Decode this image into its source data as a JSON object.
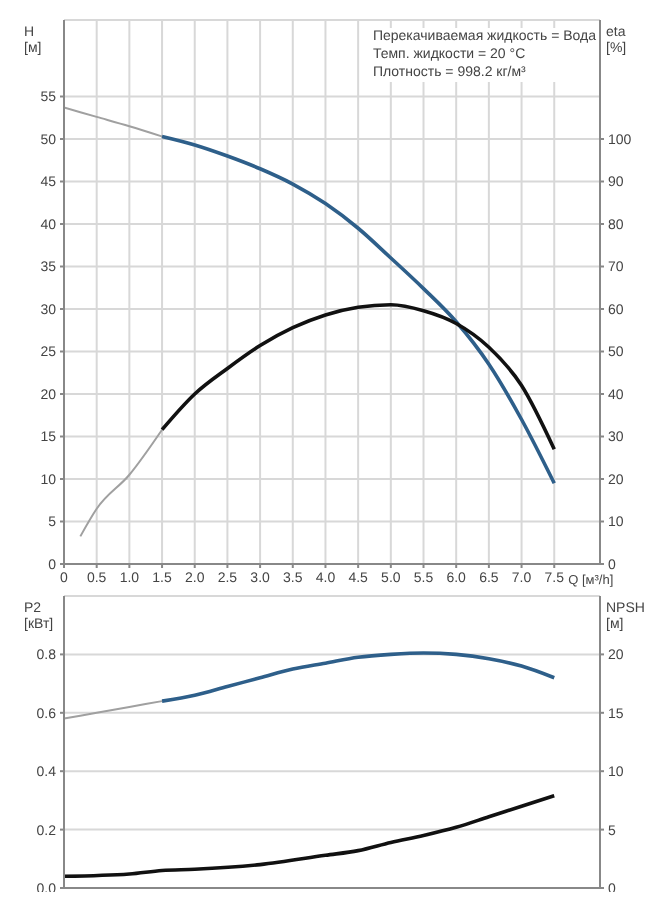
{
  "chart_data": [
    {
      "type": "line",
      "xlabel": "Q [м³/h]",
      "ylabel": "H [м]",
      "y2label": "eta [%]",
      "xlim": [
        0,
        8.2
      ],
      "xticks": [
        {
          "value": 0,
          "label": "0"
        },
        0.5,
        {
          "value": 1,
          "label": "1.0"
        },
        1.5,
        {
          "value": 2,
          "label": "2.0"
        },
        2.5,
        {
          "value": 3,
          "label": "3.0"
        },
        3.5,
        {
          "value": 4,
          "label": "4.0"
        },
        4.5,
        {
          "value": 5,
          "label": "5.0"
        },
        5.5,
        {
          "value": 6,
          "label": "6.0"
        },
        6.5,
        {
          "value": 7,
          "label": "7.0"
        },
        7.5
      ],
      "ylim": [
        0,
        64
      ],
      "yticks": [
        0,
        5,
        10,
        15,
        20,
        25,
        30,
        35,
        40,
        45,
        50,
        55
      ],
      "y2lim": [
        0,
        128
      ],
      "y2ticks": [
        0,
        10,
        20,
        30,
        40,
        50,
        60,
        70,
        80,
        90,
        100
      ],
      "grid": true,
      "legend": false,
      "marker": "none",
      "annotations": [
        "Перекачиваемая жидкость = Вода",
        "Темп. жидкости = 20 °C",
        "Плотность = 998.2 кг/м³"
      ],
      "series": [
        {
          "color": "#a0a0a0",
          "x": [
            0,
            0.5,
            1,
            1.5
          ],
          "values": [
            53.7,
            52.6,
            51.5,
            50.3
          ]
        },
        {
          "color": "#2e5f8a",
          "x": [
            1.5,
            2,
            2.5,
            3,
            3.5,
            4,
            4.5,
            5,
            5.5,
            6,
            6.5,
            7,
            7.5
          ],
          "values": [
            50.3,
            49.3,
            48,
            46.5,
            44.7,
            42.4,
            39.5,
            36,
            32.4,
            28.5,
            23.5,
            17,
            9.5
          ]
        },
        {
          "color": "#a0a0a0",
          "axis": "y2",
          "x": [
            0.25,
            0.5,
            1,
            1.5
          ],
          "values": [
            6.5,
            13,
            21,
            31.6
          ]
        },
        {
          "color": "#111111",
          "axis": "y2",
          "x": [
            1.5,
            2,
            2.5,
            3,
            3.5,
            4,
            4.5,
            5,
            5.5,
            6,
            6.5,
            7,
            7.5
          ],
          "values": [
            31.6,
            40,
            46,
            51.4,
            55.6,
            58.6,
            60.4,
            61,
            59.6,
            56.6,
            51,
            42,
            27
          ]
        }
      ]
    },
    {
      "type": "line",
      "ylabel": "P2 [кВт]",
      "y2label": "NPSH [м]",
      "xlim": [
        0,
        8.2
      ],
      "xticks": [
        0,
        0.5,
        1,
        1.5,
        2,
        2.5,
        3,
        3.5,
        4,
        4.5,
        5,
        5.5,
        6,
        6.5,
        7,
        7.5
      ],
      "ylim": [
        0,
        1
      ],
      "yticks": [
        {
          "value": 0,
          "label": "0.0"
        },
        0.2,
        0.4,
        0.6,
        0.8
      ],
      "y2lim": [
        0,
        25
      ],
      "y2ticks": [
        0,
        5,
        10,
        15,
        20
      ],
      "tick_labels": "y",
      "grid": true,
      "legend": false,
      "marker": "none",
      "series": [
        {
          "color": "#a0a0a0",
          "x": [
            0,
            0.5,
            1,
            1.5
          ],
          "values": [
            0.58,
            0.6,
            0.62,
            0.64
          ]
        },
        {
          "color": "#2e5f8a",
          "x": [
            1.5,
            2,
            2.5,
            3,
            3.5,
            4,
            4.5,
            5,
            5.5,
            6,
            6.5,
            7,
            7.5
          ],
          "values": [
            0.64,
            0.66,
            0.69,
            0.72,
            0.75,
            0.77,
            0.79,
            0.8,
            0.805,
            0.8,
            0.785,
            0.76,
            0.72
          ]
        },
        {
          "color": "#111111",
          "axis": "y2",
          "x": [
            0,
            1,
            1.5,
            2,
            3,
            4,
            4.5,
            5,
            5.5,
            6,
            6.5,
            7,
            7.5
          ],
          "values": [
            1,
            1.2,
            1.5,
            1.6,
            2,
            2.8,
            3.2,
            3.9,
            4.5,
            5.2,
            6.1,
            7,
            7.9
          ]
        }
      ]
    }
  ]
}
